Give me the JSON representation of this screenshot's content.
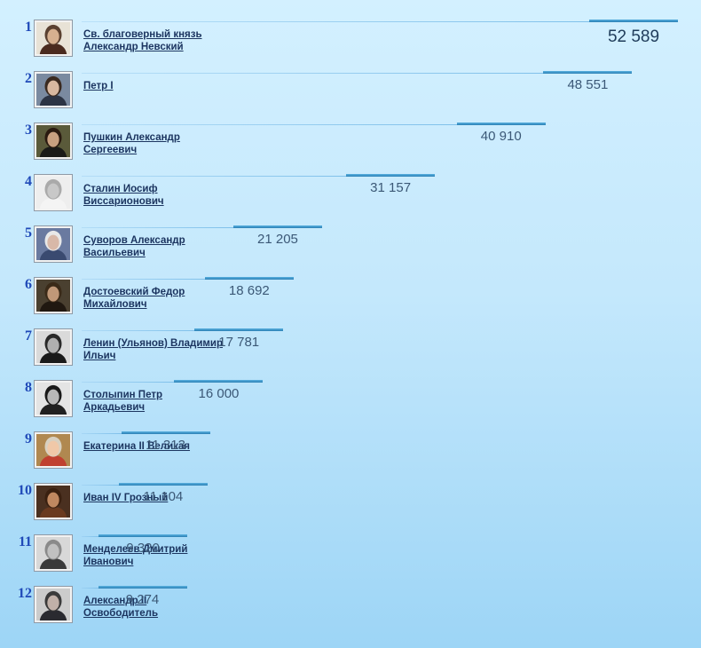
{
  "chart_data": {
    "type": "bar",
    "orientation": "horizontal",
    "xlim": [
      0,
      52589
    ],
    "categories": [
      {
        "rank": "1",
        "name": "Св. благоверный князь Александр Невский",
        "line1": "Св. благоверный князь",
        "line2": "Александр Невский",
        "value": 52589,
        "value_label": "52 589",
        "portrait_icon": "portrait-nevsky-icon"
      },
      {
        "rank": "2",
        "name": "Петр I",
        "line1": "Петр I",
        "line2": "",
        "value": 48551,
        "value_label": "48 551",
        "portrait_icon": "portrait-peter-icon"
      },
      {
        "rank": "3",
        "name": "Пушкин Александр Сергеевич",
        "line1": "Пушкин Александр",
        "line2": "Сергеевич",
        "value": 40910,
        "value_label": "40 910",
        "portrait_icon": "portrait-pushkin-icon"
      },
      {
        "rank": "4",
        "name": "Сталин Иосиф Виссарионович",
        "line1": "Сталин Иосиф",
        "line2": "Виссарионович",
        "value": 31157,
        "value_label": "31 157",
        "portrait_icon": "portrait-stalin-icon"
      },
      {
        "rank": "5",
        "name": "Суворов Александр Васильевич",
        "line1": "Суворов Александр",
        "line2": "Васильевич",
        "value": 21205,
        "value_label": "21 205",
        "portrait_icon": "portrait-suvorov-icon"
      },
      {
        "rank": "6",
        "name": "Достоевский Федор Михайлович",
        "line1": "Достоевский Федор",
        "line2": "Михайлович",
        "value": 18692,
        "value_label": "18 692",
        "portrait_icon": "portrait-dostoevsky-icon"
      },
      {
        "rank": "7",
        "name": "Ленин (Ульянов) Владимир Ильич",
        "line1": "Ленин (Ульянов) Владимир",
        "line2": "Ильич",
        "value": 17781,
        "value_label": "17 781",
        "portrait_icon": "portrait-lenin-icon"
      },
      {
        "rank": "8",
        "name": "Столыпин Петр Аркадьевич",
        "line1": "Столыпин Петр",
        "line2": "Аркадьевич",
        "value": 16000,
        "value_label": "16 000",
        "portrait_icon": "portrait-stolypin-icon"
      },
      {
        "rank": "9",
        "name": "Екатерина II Великая",
        "line1": "Екатерина II Великая",
        "line2": "",
        "value": 11313,
        "value_label": "11 313",
        "portrait_icon": "portrait-catherine-icon"
      },
      {
        "rank": "10",
        "name": "Иван IV Грозный",
        "line1": "Иван IV Грозный",
        "line2": "",
        "value": 11104,
        "value_label": "11 104",
        "portrait_icon": "portrait-ivan-icon"
      },
      {
        "rank": "11",
        "name": "Менделеев Дмитрий Иванович",
        "line1": "Менделеев Дмитрий",
        "line2": "Иванович",
        "value": 9320,
        "value_label": "9 320",
        "portrait_icon": "portrait-mendeleev-icon"
      },
      {
        "rank": "12",
        "name": "Александр II Освободитель",
        "line1": "Александр II",
        "line2": "Освободитель",
        "value": 9274,
        "value_label": "9 274",
        "portrait_icon": "portrait-alexander2-icon"
      }
    ]
  },
  "colors": {
    "rank": "#1f49b8",
    "name": "#1c3560",
    "bar": "#2a7fb3",
    "value": "#3b5876"
  }
}
